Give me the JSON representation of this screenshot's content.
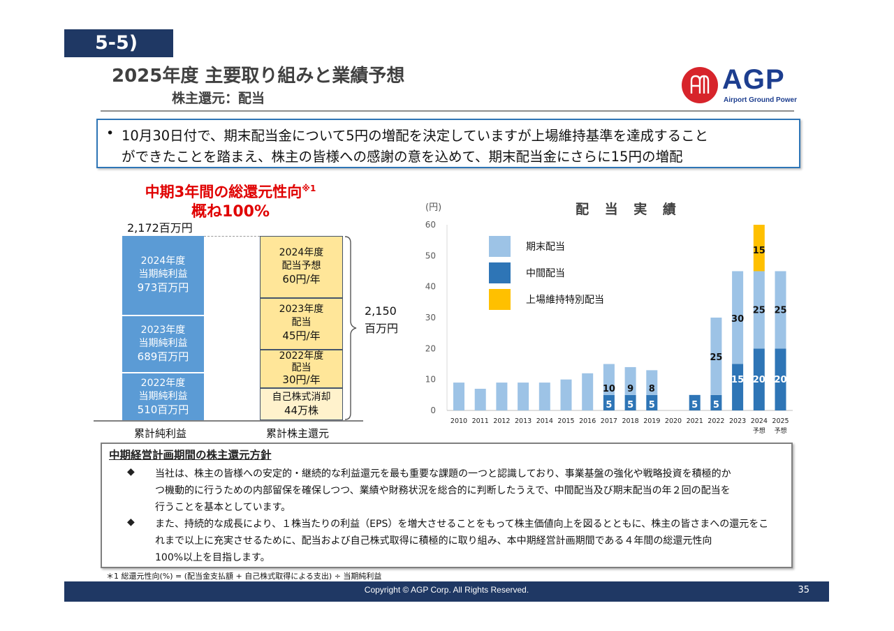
{
  "header": {
    "section": "5-5)",
    "title": "2025年度 主要取り組みと業績予想",
    "subtitle": "株主還元：配当",
    "logo_text": "AGP",
    "logo_subtext": "Airport Ground Power"
  },
  "notice": {
    "bullet": "•",
    "line1": "10月30日付で、期末配当金について5円の増配を決定していますが上場維持基準を達成すること",
    "line2": "ができたことを踏まえ、株主の皆様への感謝の意を込めて、期末配当金にさらに15円の増配"
  },
  "payout": {
    "title_line1": "中期3年間の総還元性向",
    "title_sup": "※1",
    "title_line2": "概ね100%",
    "total_label": "2,172百万円",
    "left_bars": [
      {
        "line1": "2024年度",
        "line2": "当期純利益",
        "line3": "973百万円"
      },
      {
        "line1": "2023年度",
        "line2": "当期純利益",
        "line3": "689百万円"
      },
      {
        "line1": "2022年度",
        "line2": "当期純利益",
        "line3": "510百万円"
      }
    ],
    "right_bars": [
      {
        "line1": "2024年度",
        "line2": "配当予想",
        "line3": "60円/年"
      },
      {
        "line1": "2023年度",
        "line2": "配当",
        "line3": "45円/年"
      },
      {
        "line1": "2022年度",
        "line2": "配当",
        "line3": "30円/年"
      },
      {
        "line1": "自己株式消却",
        "line2": "44万株"
      }
    ],
    "brace_value": "2,150",
    "brace_unit": "百万円",
    "left_label": "累計純利益",
    "right_label": "累計株主還元"
  },
  "chart_data": {
    "type": "bar",
    "title": "配 当 実 績",
    "ylabel": "(円)",
    "ylim": [
      0,
      60
    ],
    "yticks": [
      0,
      10,
      20,
      30,
      40,
      50,
      60
    ],
    "categories": [
      "2010",
      "2011",
      "2012",
      "2013",
      "2014",
      "2015",
      "2016",
      "2017",
      "2018",
      "2019",
      "2020",
      "2021",
      "2022",
      "2023",
      "2024",
      "2025"
    ],
    "category_sublabels": [
      "",
      "",
      "",
      "",
      "",
      "",
      "",
      "",
      "",
      "",
      "",
      "",
      "",
      "",
      "予想",
      "予想"
    ],
    "stacked": true,
    "series": [
      {
        "name": "中間配当",
        "color": "#2e75b6",
        "label_color": "#ffffff",
        "values": [
          0,
          0,
          0,
          0,
          0,
          0,
          0,
          5,
          5,
          5,
          0,
          5,
          5,
          15,
          20,
          20
        ],
        "labels": [
          "",
          "",
          "",
          "",
          "",
          "",
          "",
          "5",
          "5",
          "5",
          "",
          "5",
          "5",
          "15",
          "20",
          "20"
        ]
      },
      {
        "name": "期末配当",
        "color": "#9dc3e6",
        "label_color": "#111111",
        "values": [
          9,
          7,
          9,
          9,
          9,
          10,
          12,
          10,
          9,
          8,
          0,
          0,
          25,
          30,
          25,
          25
        ],
        "labels": [
          "",
          "",
          "",
          "",
          "",
          "",
          "",
          "10",
          "9",
          "8",
          "",
          "",
          "25",
          "30",
          "25",
          "25"
        ]
      },
      {
        "name": "上場維持特別配当",
        "color": "#ffc000",
        "label_color": "#111111",
        "values": [
          0,
          0,
          0,
          0,
          0,
          0,
          0,
          0,
          0,
          0,
          0,
          0,
          0,
          0,
          15,
          0
        ],
        "labels": [
          "",
          "",
          "",
          "",
          "",
          "",
          "",
          "",
          "",
          "",
          "",
          "",
          "",
          "",
          "15",
          ""
        ]
      }
    ],
    "legend": [
      {
        "name": "期末配当",
        "color": "#9dc3e6"
      },
      {
        "name": "中間配当",
        "color": "#2e75b6"
      },
      {
        "name": "上場維持特別配当",
        "color": "#ffc000"
      }
    ],
    "legend_placement": "top-left",
    "grid": false
  },
  "policy": {
    "title": "中期経営計画期間の株主還元方針",
    "diamond": "◆",
    "p1_l1": "当社は、株主の皆様への安定的・継続的な利益還元を最も重要な課題の一つと認識しており、事業基盤の強化や戦略投資を積極的か",
    "p1_l2": "つ機動的に行うための内部留保を確保しつつ、業績や財務状況を総合的に判断したうえで、中間配当及び期末配当の年２回の配当を",
    "p1_l3": "行うことを基本としています。",
    "p2_l1": "また、持続的な成長により、１株当たりの利益（EPS）を増大させることをもって株主価値向上を図るとともに、株主の皆さまへの還元をこ",
    "p2_l2": "れまで以上に充実させるために、配当および自己株式取得に積極的に取り組み、本中期経営計画期間である４年間の総還元性向",
    "p2_l3": "100%以上を目指します。"
  },
  "footnote": "＊1 総還元性向(%) = (配当金支払額 + 自己株式取得による支出) ÷ 当期純利益",
  "footer": {
    "copyright": "Copyright © AGP Corp. All Rights Reserved.",
    "page": "35"
  }
}
